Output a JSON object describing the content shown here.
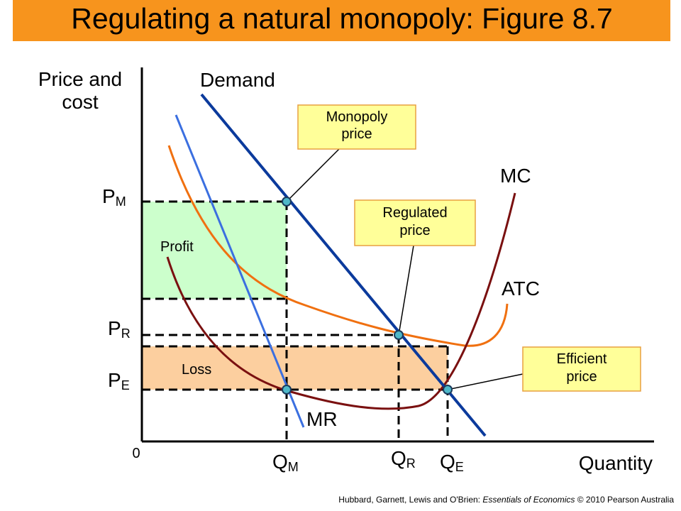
{
  "title": "Regulating a natural monopoly: Figure 8.7",
  "axes": {
    "y_label": [
      "Price and",
      "cost"
    ],
    "x_label": "Quantity",
    "origin": "0"
  },
  "curves": {
    "demand": "Demand",
    "mc": "MC",
    "atc": "ATC",
    "mr": "MR"
  },
  "areas": {
    "profit": "Profit",
    "loss": "Loss"
  },
  "price_labels": [
    {
      "main": "P",
      "sub": "M"
    },
    {
      "main": "P",
      "sub": "R"
    },
    {
      "main": "P",
      "sub": "E"
    }
  ],
  "quantity_labels": [
    {
      "main": "Q",
      "sub": "M"
    },
    {
      "main": "Q",
      "sub": "R"
    },
    {
      "main": "Q",
      "sub": "E"
    }
  ],
  "callouts": [
    [
      "Monopoly",
      "price"
    ],
    [
      "Regulated",
      "price"
    ],
    [
      "Efficient",
      "price"
    ]
  ],
  "footer": {
    "authors": "Hubbard, Garnett, Lewis and O'Brien: ",
    "book": "Essentials of Economics",
    "rest": " © 2010 Pearson Australia"
  }
}
